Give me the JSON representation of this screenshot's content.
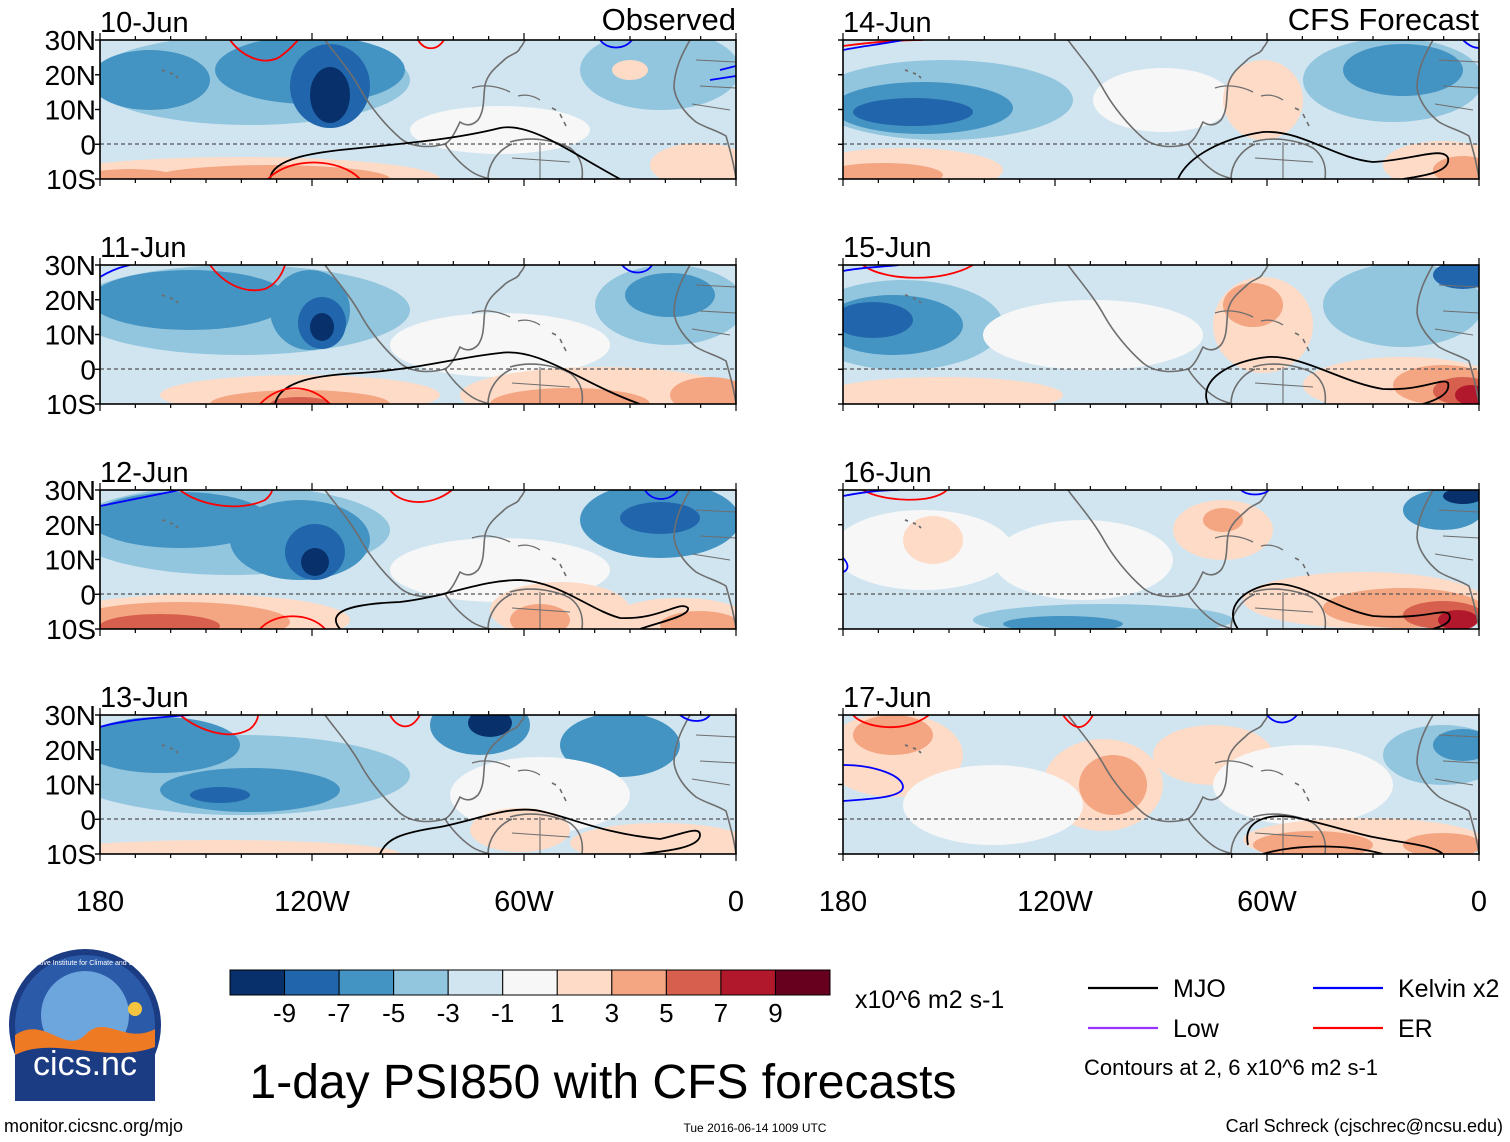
{
  "figure": {
    "title": "1-day PSI850 with CFS forecasts",
    "left_header": "Observed",
    "right_header": "CFS Forecast",
    "footer_left": "monitor.cicsnc.org/mjo",
    "footer_center": "Tue 2016-06-14 1009 UTC",
    "footer_right": "Carl Schreck (cjschrec@ncsu.edu)",
    "logo_text": "cics.nc",
    "logo_ring_text": "Cooperative Institute for Climate and Satellites"
  },
  "chart_data": {
    "type": "heatmap",
    "variable": "PSI850 anomaly",
    "units": "x10^6 m2 s-1",
    "longitude_ticks": [
      "180",
      "120W",
      "60W",
      "0"
    ],
    "latitude_ticks": [
      "30N",
      "20N",
      "10N",
      "0",
      "10S"
    ],
    "panels": [
      {
        "date": "10-Jun",
        "source": "Observed"
      },
      {
        "date": "11-Jun",
        "source": "Observed"
      },
      {
        "date": "12-Jun",
        "source": "Observed"
      },
      {
        "date": "13-Jun",
        "source": "Observed"
      },
      {
        "date": "14-Jun",
        "source": "CFS Forecast"
      },
      {
        "date": "15-Jun",
        "source": "CFS Forecast"
      },
      {
        "date": "16-Jun",
        "source": "CFS Forecast"
      },
      {
        "date": "17-Jun",
        "source": "CFS Forecast"
      }
    ],
    "colorbar": {
      "labels": [
        "-9",
        "-7",
        "-5",
        "-3",
        "-1",
        "1",
        "3",
        "5",
        "7",
        "9"
      ],
      "colors": [
        "#08306b",
        "#2166ac",
        "#4393c3",
        "#92c5de",
        "#d1e5f0",
        "#f7f7f7",
        "#fddbc7",
        "#f4a582",
        "#d6604d",
        "#b2182b",
        "#67001f"
      ]
    },
    "legend": [
      {
        "label": "MJO",
        "color": "#000000"
      },
      {
        "label": "Kelvin x2",
        "color": "#0000ff"
      },
      {
        "label": "Low",
        "color": "#9933ff"
      },
      {
        "label": "ER",
        "color": "#ff0000"
      }
    ],
    "contour_note": "Contours at 2, 6 x10^6 m2 s-1"
  }
}
